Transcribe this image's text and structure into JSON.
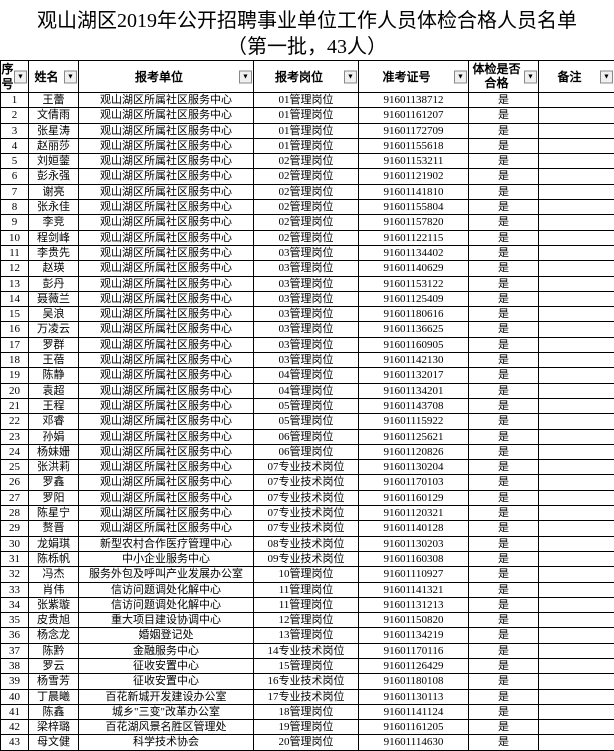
{
  "title_line1": "观山湖区2019年公开招聘事业单位工作人员体检合格人员名单",
  "title_line2": "（第一批，43人）",
  "columns": {
    "seq": "序号",
    "name": "姓名",
    "unit": "报考单位",
    "post": "报考岗位",
    "exam": "准考证号",
    "pass": "体检是否合格",
    "remark": "备注"
  },
  "rows": [
    {
      "seq": 1,
      "name": "王蕾",
      "unit": "观山湖区所属社区服务中心",
      "post": "01管理岗位",
      "exam": "91601138712",
      "pass": "是",
      "remark": ""
    },
    {
      "seq": 2,
      "name": "文倩雨",
      "unit": "观山湖区所属社区服务中心",
      "post": "01管理岗位",
      "exam": "91601161207",
      "pass": "是",
      "remark": ""
    },
    {
      "seq": 3,
      "name": "张星涛",
      "unit": "观山湖区所属社区服务中心",
      "post": "01管理岗位",
      "exam": "91601172709",
      "pass": "是",
      "remark": ""
    },
    {
      "seq": 4,
      "name": "赵丽莎",
      "unit": "观山湖区所属社区服务中心",
      "post": "01管理岗位",
      "exam": "91601155618",
      "pass": "是",
      "remark": ""
    },
    {
      "seq": 5,
      "name": "刘姮蓥",
      "unit": "观山湖区所属社区服务中心",
      "post": "02管理岗位",
      "exam": "91601153211",
      "pass": "是",
      "remark": ""
    },
    {
      "seq": 6,
      "name": "彭永强",
      "unit": "观山湖区所属社区服务中心",
      "post": "02管理岗位",
      "exam": "91601121902",
      "pass": "是",
      "remark": ""
    },
    {
      "seq": 7,
      "name": "谢亮",
      "unit": "观山湖区所属社区服务中心",
      "post": "02管理岗位",
      "exam": "91601141810",
      "pass": "是",
      "remark": ""
    },
    {
      "seq": 8,
      "name": "张永佳",
      "unit": "观山湖区所属社区服务中心",
      "post": "02管理岗位",
      "exam": "91601155804",
      "pass": "是",
      "remark": ""
    },
    {
      "seq": 9,
      "name": "李竞",
      "unit": "观山湖区所属社区服务中心",
      "post": "02管理岗位",
      "exam": "91601157820",
      "pass": "是",
      "remark": ""
    },
    {
      "seq": 10,
      "name": "程剑峰",
      "unit": "观山湖区所属社区服务中心",
      "post": "02管理岗位",
      "exam": "91601122115",
      "pass": "是",
      "remark": ""
    },
    {
      "seq": 11,
      "name": "李贵先",
      "unit": "观山湖区所属社区服务中心",
      "post": "03管理岗位",
      "exam": "91601134402",
      "pass": "是",
      "remark": ""
    },
    {
      "seq": 12,
      "name": "赵瑛",
      "unit": "观山湖区所属社区服务中心",
      "post": "03管理岗位",
      "exam": "91601140629",
      "pass": "是",
      "remark": ""
    },
    {
      "seq": 13,
      "name": "彭丹",
      "unit": "观山湖区所属社区服务中心",
      "post": "03管理岗位",
      "exam": "91601153122",
      "pass": "是",
      "remark": ""
    },
    {
      "seq": 14,
      "name": "聂薇兰",
      "unit": "观山湖区所属社区服务中心",
      "post": "03管理岗位",
      "exam": "91601125409",
      "pass": "是",
      "remark": ""
    },
    {
      "seq": 15,
      "name": "吴浪",
      "unit": "观山湖区所属社区服务中心",
      "post": "03管理岗位",
      "exam": "91601180616",
      "pass": "是",
      "remark": ""
    },
    {
      "seq": 16,
      "name": "万凌云",
      "unit": "观山湖区所属社区服务中心",
      "post": "03管理岗位",
      "exam": "91601136625",
      "pass": "是",
      "remark": ""
    },
    {
      "seq": 17,
      "name": "罗群",
      "unit": "观山湖区所属社区服务中心",
      "post": "03管理岗位",
      "exam": "91601160905",
      "pass": "是",
      "remark": ""
    },
    {
      "seq": 18,
      "name": "王蓓",
      "unit": "观山湖区所属社区服务中心",
      "post": "03管理岗位",
      "exam": "91601142130",
      "pass": "是",
      "remark": ""
    },
    {
      "seq": 19,
      "name": "陈静",
      "unit": "观山湖区所属社区服务中心",
      "post": "04管理岗位",
      "exam": "91601132017",
      "pass": "是",
      "remark": ""
    },
    {
      "seq": 20,
      "name": "袁超",
      "unit": "观山湖区所属社区服务中心",
      "post": "04管理岗位",
      "exam": "91601134201",
      "pass": "是",
      "remark": ""
    },
    {
      "seq": 21,
      "name": "王程",
      "unit": "观山湖区所属社区服务中心",
      "post": "05管理岗位",
      "exam": "91601143708",
      "pass": "是",
      "remark": ""
    },
    {
      "seq": 22,
      "name": "邓睿",
      "unit": "观山湖区所属社区服务中心",
      "post": "05管理岗位",
      "exam": "91601115922",
      "pass": "是",
      "remark": ""
    },
    {
      "seq": 23,
      "name": "孙娟",
      "unit": "观山湖区所属社区服务中心",
      "post": "06管理岗位",
      "exam": "91601125621",
      "pass": "是",
      "remark": ""
    },
    {
      "seq": 24,
      "name": "杨妹姗",
      "unit": "观山湖区所属社区服务中心",
      "post": "06管理岗位",
      "exam": "91601120826",
      "pass": "是",
      "remark": ""
    },
    {
      "seq": 25,
      "name": "张洪莉",
      "unit": "观山湖区所属社区服务中心",
      "post": "07专业技术岗位",
      "exam": "91601130204",
      "pass": "是",
      "remark": ""
    },
    {
      "seq": 26,
      "name": "罗鑫",
      "unit": "观山湖区所属社区服务中心",
      "post": "07专业技术岗位",
      "exam": "91601170103",
      "pass": "是",
      "remark": ""
    },
    {
      "seq": 27,
      "name": "罗阳",
      "unit": "观山湖区所属社区服务中心",
      "post": "07专业技术岗位",
      "exam": "91601160129",
      "pass": "是",
      "remark": ""
    },
    {
      "seq": 28,
      "name": "陈星宁",
      "unit": "观山湖区所属社区服务中心",
      "post": "07专业技术岗位",
      "exam": "91601120321",
      "pass": "是",
      "remark": ""
    },
    {
      "seq": 29,
      "name": "赘晋",
      "unit": "观山湖区所属社区服务中心",
      "post": "07专业技术岗位",
      "exam": "91601140128",
      "pass": "是",
      "remark": ""
    },
    {
      "seq": 30,
      "name": "龙娟琪",
      "unit": "新型农村合作医疗管理中心",
      "post": "08专业技术岗位",
      "exam": "91601130203",
      "pass": "是",
      "remark": ""
    },
    {
      "seq": 31,
      "name": "陈栎帆",
      "unit": "中小企业服务中心",
      "post": "09专业技术岗位",
      "exam": "91601160308",
      "pass": "是",
      "remark": ""
    },
    {
      "seq": 32,
      "name": "冯杰",
      "unit": "服务外包及呼叫产业发展办公室",
      "post": "10管理岗位",
      "exam": "91601110927",
      "pass": "是",
      "remark": ""
    },
    {
      "seq": 33,
      "name": "肖伟",
      "unit": "信访问题调处化解中心",
      "post": "11管理岗位",
      "exam": "91601141321",
      "pass": "是",
      "remark": ""
    },
    {
      "seq": 34,
      "name": "张紫璇",
      "unit": "信访问题调处化解中心",
      "post": "11管理岗位",
      "exam": "91601131213",
      "pass": "是",
      "remark": ""
    },
    {
      "seq": 35,
      "name": "皮贵旭",
      "unit": "重大项目建设协调中心",
      "post": "12管理岗位",
      "exam": "91601150820",
      "pass": "是",
      "remark": ""
    },
    {
      "seq": 36,
      "name": "杨念龙",
      "unit": "婚姻登记处",
      "post": "13管理岗位",
      "exam": "91601134219",
      "pass": "是",
      "remark": ""
    },
    {
      "seq": 37,
      "name": "陈黔",
      "unit": "金融服务中心",
      "post": "14专业技术岗位",
      "exam": "91601170116",
      "pass": "是",
      "remark": ""
    },
    {
      "seq": 38,
      "name": "罗云",
      "unit": "征收安置中心",
      "post": "15管理岗位",
      "exam": "91601126429",
      "pass": "是",
      "remark": ""
    },
    {
      "seq": 39,
      "name": "杨雪芳",
      "unit": "征收安置中心",
      "post": "16专业技术岗位",
      "exam": "91601180108",
      "pass": "是",
      "remark": ""
    },
    {
      "seq": 40,
      "name": "丁晨曦",
      "unit": "百花新城开发建设办公室",
      "post": "17专业技术岗位",
      "exam": "91601130113",
      "pass": "是",
      "remark": ""
    },
    {
      "seq": 41,
      "name": "陈鑫",
      "unit": "城乡\"三变\"改革办公室",
      "post": "18管理岗位",
      "exam": "91601141124",
      "pass": "是",
      "remark": ""
    },
    {
      "seq": 42,
      "name": "梁梓璐",
      "unit": "百花湖风景名胜区管理处",
      "post": "19管理岗位",
      "exam": "91601161205",
      "pass": "是",
      "remark": ""
    },
    {
      "seq": 43,
      "name": "母文健",
      "unit": "科学技术协会",
      "post": "20管理岗位",
      "exam": "91601114630",
      "pass": "是",
      "remark": ""
    }
  ]
}
